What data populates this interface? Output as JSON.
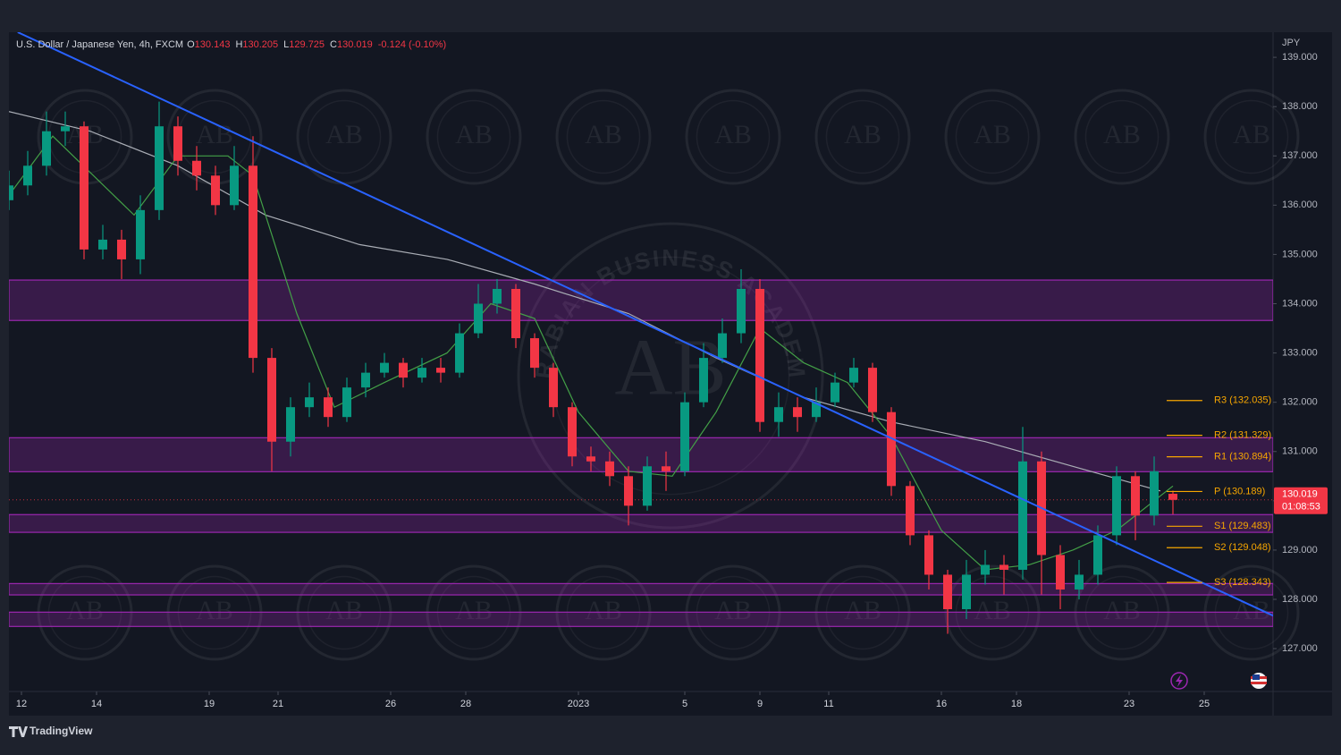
{
  "chart_data": {
    "type": "candlestick",
    "title": "U.S. Dollar / Japanese Yen, 4h, FXCM",
    "ohlc_summary": [
      {
        "label": "O",
        "value": 130.143
      },
      {
        "label": "H",
        "value": 130.205
      },
      {
        "label": "L",
        "value": 129.725
      },
      {
        "label": "C",
        "value": 130.019
      }
    ],
    "change": "-0.124 (-0.10%)",
    "currency": "JPY",
    "x": [
      0,
      3,
      6,
      9,
      12,
      15,
      18,
      21,
      24,
      27,
      30,
      33,
      36,
      39,
      42,
      45,
      48,
      51,
      54,
      57,
      60,
      63,
      66,
      69,
      72,
      75,
      78,
      81,
      84,
      87,
      90,
      93,
      96,
      99,
      102,
      105,
      108,
      111,
      114,
      117,
      120,
      123,
      126,
      129,
      132,
      135,
      138,
      141,
      144,
      147,
      150,
      153,
      156,
      159,
      162,
      165,
      168,
      171,
      174,
      177,
      180,
      183,
      186
    ],
    "open": [
      136.1,
      136.4,
      136.8,
      137.5,
      137.6,
      135.1,
      135.3,
      134.9,
      135.9,
      137.6,
      136.9,
      136.6,
      136.0,
      136.8,
      132.9,
      131.2,
      131.9,
      132.1,
      131.7,
      132.3,
      132.6,
      132.8,
      132.5,
      132.7,
      132.6,
      133.4,
      134.0,
      134.3,
      133.3,
      132.7,
      131.9,
      130.9,
      130.8,
      130.5,
      129.9,
      130.7,
      130.6,
      132.0,
      132.9,
      133.4,
      134.3,
      131.6,
      131.9,
      131.7,
      132.0,
      132.4,
      132.7,
      131.8,
      130.3,
      129.3,
      128.5,
      127.8,
      128.5,
      128.7,
      128.6,
      130.8,
      128.9,
      128.2,
      128.5,
      129.3,
      130.5,
      129.7,
      130.143
    ],
    "high": [
      136.7,
      137.1,
      137.9,
      137.9,
      137.7,
      135.6,
      135.5,
      136.2,
      138.1,
      137.8,
      137.2,
      136.8,
      137.2,
      137.4,
      133.1,
      132.1,
      132.4,
      132.3,
      132.5,
      132.8,
      133.0,
      132.9,
      132.9,
      132.9,
      133.6,
      134.4,
      134.5,
      134.4,
      133.4,
      132.8,
      132.0,
      131.1,
      131.0,
      130.7,
      130.9,
      131.0,
      132.2,
      133.2,
      133.7,
      134.7,
      134.5,
      132.2,
      132.1,
      132.3,
      132.6,
      132.9,
      132.8,
      131.9,
      130.4,
      129.4,
      128.6,
      128.8,
      129.0,
      128.9,
      131.5,
      131.0,
      129.1,
      128.8,
      129.5,
      130.7,
      130.6,
      130.9,
      130.205
    ],
    "low": [
      135.9,
      136.2,
      136.6,
      137.2,
      134.9,
      134.9,
      134.5,
      134.6,
      135.7,
      136.6,
      136.3,
      135.8,
      135.9,
      132.6,
      130.6,
      130.9,
      131.7,
      131.5,
      131.6,
      132.1,
      132.5,
      132.3,
      132.4,
      132.4,
      132.5,
      133.3,
      133.8,
      133.1,
      132.5,
      131.7,
      130.7,
      130.6,
      130.3,
      129.5,
      129.8,
      130.2,
      130.5,
      131.9,
      132.8,
      133.2,
      131.4,
      131.3,
      131.4,
      131.6,
      131.9,
      132.3,
      131.6,
      130.1,
      129.1,
      128.2,
      127.3,
      127.6,
      128.3,
      128.1,
      128.4,
      128.1,
      127.8,
      128.0,
      128.3,
      129.1,
      129.2,
      129.5,
      129.725
    ],
    "close": [
      136.4,
      136.8,
      137.5,
      137.6,
      135.1,
      135.3,
      134.9,
      135.9,
      137.6,
      136.9,
      136.6,
      136.0,
      136.8,
      132.9,
      131.2,
      131.9,
      132.1,
      131.7,
      132.3,
      132.6,
      132.8,
      132.5,
      132.7,
      132.6,
      133.4,
      134.0,
      134.3,
      133.3,
      132.7,
      131.9,
      130.9,
      130.8,
      130.5,
      129.9,
      130.7,
      130.6,
      132.0,
      132.9,
      133.4,
      134.3,
      131.6,
      131.9,
      131.7,
      132.0,
      132.4,
      132.7,
      131.8,
      130.3,
      129.3,
      128.5,
      127.8,
      128.5,
      128.7,
      128.6,
      130.8,
      128.9,
      128.2,
      128.5,
      129.3,
      130.5,
      129.7,
      130.6,
      130.019
    ],
    "up_color": "#089981",
    "down_color": "#f23645",
    "xlim": [
      0,
      202
    ],
    "xticks": [
      {
        "value": 2,
        "label": "12"
      },
      {
        "value": 14,
        "label": "14"
      },
      {
        "value": 32,
        "label": "19"
      },
      {
        "value": 43,
        "label": "21"
      },
      {
        "value": 61,
        "label": "26"
      },
      {
        "value": 73,
        "label": "28"
      },
      {
        "value": 91,
        "label": "2023"
      },
      {
        "value": 108,
        "label": "5"
      },
      {
        "value": 120,
        "label": "9"
      },
      {
        "value": 131,
        "label": "11"
      },
      {
        "value": 149,
        "label": "16"
      },
      {
        "value": 161,
        "label": "18"
      },
      {
        "value": 179,
        "label": "23"
      },
      {
        "value": 191,
        "label": "25"
      }
    ],
    "ylim": [
      126.13,
      139.51
    ],
    "yticks": [
      {
        "value": 127,
        "label": "127.000"
      },
      {
        "value": 128,
        "label": "128.000"
      },
      {
        "value": 129,
        "label": "129.000"
      },
      {
        "value": 130,
        "label": "130.000"
      },
      {
        "value": 131,
        "label": "131.000"
      },
      {
        "value": 132,
        "label": "132.000"
      },
      {
        "value": 133,
        "label": "133.000"
      },
      {
        "value": 134,
        "label": "134.000"
      },
      {
        "value": 135,
        "label": "135.000"
      },
      {
        "value": 136,
        "label": "136.000"
      },
      {
        "value": 137,
        "label": "137.000"
      },
      {
        "value": 138,
        "label": "138.000"
      },
      {
        "value": 139,
        "label": "139.000"
      }
    ],
    "overlays": [
      {
        "color": "#a9adb5",
        "x": [
          0,
          13,
          27,
          41,
          56,
          70,
          84,
          99,
          113,
          127,
          141,
          156,
          170,
          184
        ],
        "values": [
          137.9,
          137.5,
          136.8,
          135.8,
          135.2,
          134.9,
          134.4,
          133.8,
          132.9,
          132.1,
          131.6,
          131.2,
          130.7,
          130.2
        ]
      },
      {
        "color": "#43a047",
        "x": [
          0,
          7,
          20,
          27,
          35,
          39,
          46,
          52,
          60,
          70,
          77,
          84,
          91,
          99,
          106,
          113,
          120,
          127,
          134,
          141,
          149,
          156,
          163,
          170,
          177,
          184,
          186
        ],
        "values": [
          136.2,
          137.4,
          135.8,
          137.0,
          137.0,
          136.6,
          133.8,
          131.9,
          132.4,
          133.0,
          134.0,
          133.7,
          131.8,
          130.6,
          130.5,
          131.8,
          133.5,
          132.8,
          132.4,
          131.3,
          129.4,
          128.6,
          128.7,
          129.0,
          129.4,
          130.1,
          130.3
        ]
      }
    ],
    "trendline": {
      "color": "#2962ff",
      "x": [
        1.4,
        202
      ],
      "values": [
        139.51,
        127.67
      ]
    },
    "zones": [
      {
        "low": 133.66,
        "high": 134.48
      },
      {
        "low": 130.59,
        "high": 131.28
      },
      {
        "low": 129.36,
        "high": 129.72
      },
      {
        "low": 128.09,
        "high": 128.32
      },
      {
        "low": 127.45,
        "high": 127.74
      }
    ],
    "zone_color": "#9c27b0",
    "pivots": [
      {
        "label": "R3 (132.035)",
        "value": 132.035
      },
      {
        "label": "R2 (131.329)",
        "value": 131.329
      },
      {
        "label": "R1 (130.894)",
        "value": 130.894
      },
      {
        "label": "P (130.189)",
        "value": 130.189
      },
      {
        "label": "S1 (129.483)",
        "value": 129.483
      },
      {
        "label": "S2 (129.048)",
        "value": 129.048
      },
      {
        "label": "S3 (128.343)",
        "value": 128.343
      }
    ],
    "pivot_x": [
      185,
      190.7
    ],
    "pivot_color": "#f7a600",
    "price_label": {
      "value": 130.019,
      "countdown": "01:08:53",
      "color": "#f23645"
    },
    "watermark": {
      "text": "ARABIAN BUSINESS ACADEMY",
      "mark": "AB"
    },
    "brand": "TradingView"
  }
}
